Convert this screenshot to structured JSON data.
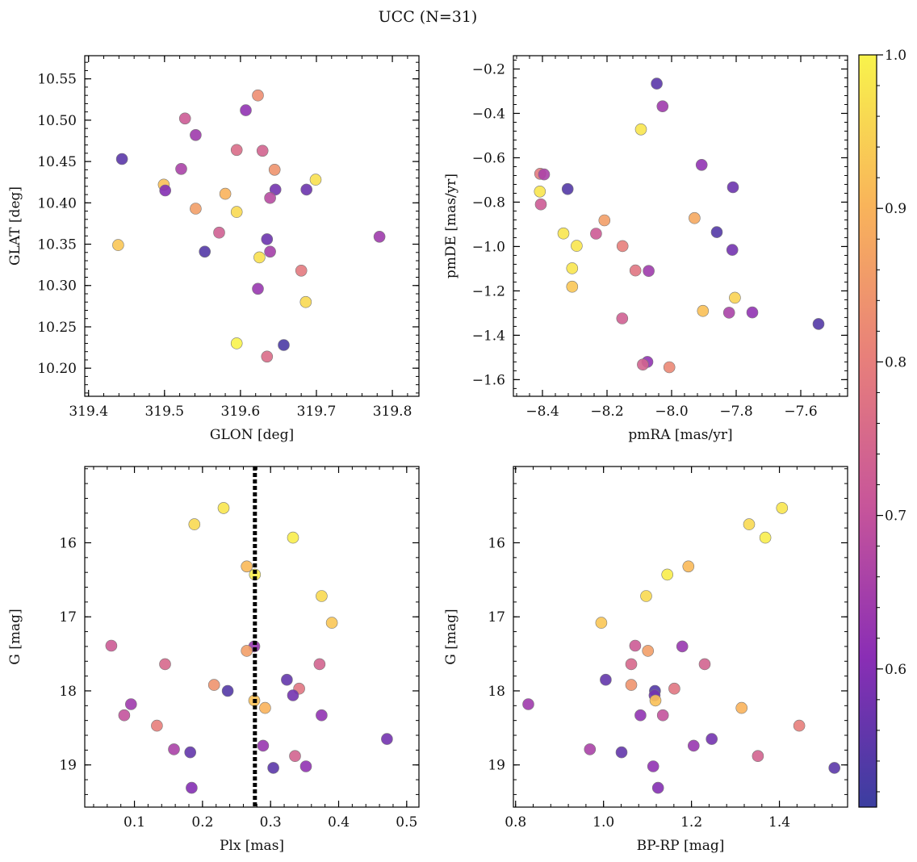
{
  "figure": {
    "title": "UCC (N=31)"
  },
  "colorbar": {
    "range": [
      0.51,
      1.0
    ],
    "ticks": [
      0.6,
      0.7,
      0.8,
      0.9,
      1.0
    ],
    "tick_labels": [
      "0.6",
      "0.7",
      "0.8",
      "0.9",
      "1.0"
    ],
    "colormap": "plasma",
    "colors": [
      "#3b3ea0",
      "#8a2eb5",
      "#c7559a",
      "#e8807a",
      "#f9b45a",
      "#f8f34c"
    ]
  },
  "chart_data": [
    {
      "type": "scatter",
      "name": "glon-glat",
      "xlabel": "GLON [deg]",
      "ylabel": "GLAT [deg]",
      "xlim": [
        319.395,
        319.835
      ],
      "ylim": [
        10.166,
        10.578
      ],
      "xticks": [
        319.4,
        319.5,
        319.6,
        319.7,
        319.8
      ],
      "xtick_labels": [
        "319.4",
        "319.5",
        "319.6",
        "319.7",
        "319.8"
      ],
      "yticks": [
        10.2,
        10.25,
        10.3,
        10.35,
        10.4,
        10.45,
        10.5,
        10.55
      ],
      "ytick_labels": [
        "10.20",
        "10.25",
        "10.30",
        "10.35",
        "10.40",
        "10.45",
        "10.50",
        "10.55"
      ],
      "x": [
        319.444,
        319.527,
        319.541,
        319.607,
        319.623,
        319.522,
        319.595,
        319.629,
        319.499,
        319.501,
        319.645,
        319.58,
        319.687,
        319.699,
        319.646,
        319.541,
        319.639,
        319.595,
        319.572,
        319.439,
        319.783,
        319.635,
        319.553,
        319.639,
        319.625,
        319.68,
        319.623,
        319.686,
        319.595,
        319.657,
        319.635
      ],
      "y": [
        10.453,
        10.502,
        10.482,
        10.512,
        10.53,
        10.441,
        10.464,
        10.463,
        10.422,
        10.415,
        10.44,
        10.411,
        10.416,
        10.428,
        10.416,
        10.393,
        10.406,
        10.389,
        10.364,
        10.349,
        10.359,
        10.356,
        10.341,
        10.341,
        10.334,
        10.318,
        10.296,
        10.28,
        10.23,
        10.228,
        10.214
      ],
      "c": [
        0.55,
        0.72,
        0.64,
        0.62,
        0.83,
        0.66,
        0.76,
        0.74,
        0.92,
        0.6,
        0.84,
        0.9,
        0.57,
        0.97,
        0.58,
        0.86,
        0.68,
        0.96,
        0.73,
        0.93,
        0.64,
        0.57,
        0.54,
        0.65,
        0.97,
        0.79,
        0.63,
        0.96,
        1.0,
        0.53,
        0.76
      ]
    },
    {
      "type": "scatter",
      "name": "pm",
      "xlabel": "pmRA [mas/yr]",
      "ylabel": "pmDE [mas/yr]",
      "xlim": [
        -8.49,
        -7.455
      ],
      "ylim": [
        -1.675,
        -0.14
      ],
      "xticks": [
        -8.4,
        -8.2,
        -8.0,
        -7.8,
        -7.6
      ],
      "xtick_labels": [
        "−8.4",
        "−8.2",
        "−8.0",
        "−7.8",
        "−7.6"
      ],
      "yticks": [
        -1.6,
        -1.4,
        -1.2,
        -1.0,
        -0.8,
        -0.6,
        -0.4,
        -0.2
      ],
      "ytick_labels": [
        "−1.6",
        "−1.4",
        "−1.2",
        "−1.0",
        "−0.8",
        "−0.6",
        "−0.4",
        "−0.2"
      ],
      "x": [
        -8.046,
        -8.028,
        -8.095,
        -7.907,
        -8.407,
        -8.395,
        -8.322,
        -7.81,
        -8.408,
        -8.405,
        -8.208,
        -7.929,
        -8.335,
        -7.86,
        -8.234,
        -8.294,
        -8.152,
        -7.812,
        -8.112,
        -8.308,
        -8.071,
        -8.308,
        -7.804,
        -7.903,
        -7.822,
        -7.75,
        -7.545,
        -8.153,
        -8.075,
        -8.089,
        -8.007
      ],
      "y": [
        -0.266,
        -0.368,
        -0.472,
        -0.632,
        -0.672,
        -0.675,
        -0.741,
        -0.733,
        -0.752,
        -0.81,
        -0.882,
        -0.872,
        -0.941,
        -0.935,
        -0.942,
        -0.997,
        -0.998,
        -1.015,
        -1.108,
        -1.098,
        -1.11,
        -1.181,
        -1.231,
        -1.29,
        -1.298,
        -1.297,
        -1.349,
        -1.324,
        -1.52,
        -1.532,
        -1.544
      ],
      "c": [
        0.55,
        0.64,
        0.98,
        0.62,
        0.79,
        0.66,
        0.54,
        0.57,
        0.98,
        0.72,
        0.86,
        0.88,
        0.98,
        0.54,
        0.72,
        0.98,
        0.8,
        0.58,
        0.78,
        0.98,
        0.64,
        0.93,
        0.95,
        0.92,
        0.66,
        0.62,
        0.54,
        0.73,
        0.62,
        0.74,
        0.82
      ]
    },
    {
      "type": "scatter",
      "name": "plx-g",
      "xlabel": "Plx [mas]",
      "ylabel": "G [mag]",
      "xlim": [
        0.027,
        0.518
      ],
      "ylim": [
        19.57,
        14.97
      ],
      "invert_y": true,
      "xticks": [
        0.1,
        0.2,
        0.3,
        0.4,
        0.5
      ],
      "xtick_labels": [
        "0.1",
        "0.2",
        "0.3",
        "0.4",
        "0.5"
      ],
      "yticks": [
        16,
        17,
        18,
        19
      ],
      "ytick_labels": [
        "16",
        "17",
        "18",
        "19"
      ],
      "vline": 0.277,
      "x": [
        0.231,
        0.188,
        0.333,
        0.265,
        0.277,
        0.375,
        0.39,
        0.066,
        0.276,
        0.265,
        0.145,
        0.372,
        0.217,
        0.324,
        0.237,
        0.342,
        0.333,
        0.276,
        0.292,
        0.095,
        0.375,
        0.085,
        0.133,
        0.471,
        0.289,
        0.158,
        0.182,
        0.336,
        0.352,
        0.304,
        0.184
      ],
      "y": [
        15.53,
        15.75,
        15.93,
        16.32,
        16.43,
        16.72,
        17.08,
        17.39,
        17.4,
        17.46,
        17.64,
        17.64,
        17.92,
        17.85,
        18.0,
        17.97,
        18.06,
        18.13,
        18.23,
        18.18,
        18.33,
        18.33,
        18.47,
        18.65,
        18.74,
        18.79,
        18.83,
        18.88,
        19.02,
        19.04,
        19.31
      ],
      "c": [
        0.98,
        0.96,
        0.99,
        0.91,
        0.99,
        0.96,
        0.93,
        0.72,
        0.63,
        0.86,
        0.75,
        0.74,
        0.84,
        0.56,
        0.54,
        0.78,
        0.58,
        0.92,
        0.9,
        0.64,
        0.62,
        0.7,
        0.8,
        0.58,
        0.63,
        0.66,
        0.56,
        0.74,
        0.62,
        0.55,
        0.6
      ]
    },
    {
      "type": "scatter",
      "name": "color-g",
      "xlabel": "BP-RP [mag]",
      "ylabel": "G [mag]",
      "xlim": [
        0.795,
        1.555
      ],
      "ylim": [
        19.57,
        14.97
      ],
      "invert_y": true,
      "xticks": [
        0.8,
        1.0,
        1.2,
        1.4
      ],
      "xtick_labels": [
        "0.8",
        "1.0",
        "1.2",
        "1.4"
      ],
      "yticks": [
        16,
        17,
        18,
        19
      ],
      "ytick_labels": [
        "16",
        "17",
        "18",
        "19"
      ],
      "x": [
        1.406,
        1.331,
        1.368,
        1.193,
        1.145,
        1.097,
        0.995,
        1.072,
        1.179,
        1.101,
        1.063,
        1.23,
        1.063,
        1.005,
        1.117,
        1.161,
        1.116,
        1.118,
        1.314,
        0.829,
        1.084,
        1.135,
        1.445,
        1.246,
        1.205,
        0.969,
        1.041,
        1.351,
        1.113,
        1.525,
        1.124
      ],
      "y": [
        15.53,
        15.75,
        15.93,
        16.32,
        16.43,
        16.72,
        17.08,
        17.39,
        17.4,
        17.46,
        17.64,
        17.64,
        17.92,
        17.85,
        18.0,
        17.97,
        18.06,
        18.13,
        18.23,
        18.18,
        18.33,
        18.33,
        18.47,
        18.65,
        18.74,
        18.79,
        18.83,
        18.88,
        19.02,
        19.04,
        19.31
      ],
      "c": [
        0.98,
        0.96,
        0.99,
        0.91,
        0.99,
        0.96,
        0.93,
        0.72,
        0.63,
        0.86,
        0.75,
        0.74,
        0.84,
        0.56,
        0.54,
        0.78,
        0.58,
        0.92,
        0.9,
        0.64,
        0.62,
        0.7,
        0.8,
        0.58,
        0.63,
        0.66,
        0.56,
        0.74,
        0.62,
        0.55,
        0.6
      ]
    }
  ]
}
